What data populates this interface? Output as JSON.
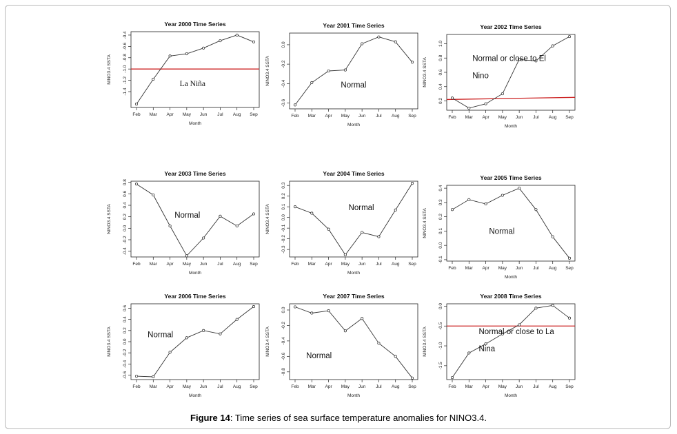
{
  "figure": {
    "caption_label": "Figure 14",
    "caption_text": ": Time series of sea surface temperature anomalies for NINO3.4."
  },
  "colors": {
    "line": "#333333",
    "reference_line": "#cc2222",
    "axis": "#222222"
  },
  "chart_data": [
    {
      "type": "line",
      "title": "Year 2000 Time Series",
      "xlabel": "Month",
      "ylabel": "NINO3.4 SSTA",
      "categories": [
        "Feb",
        "Mar",
        "Apr",
        "May",
        "Jun",
        "Jul",
        "Aug",
        "Sep"
      ],
      "values": [
        -1.62,
        -1.18,
        -0.77,
        -0.73,
        -0.63,
        -0.5,
        -0.4,
        -0.52
      ],
      "ylim": [
        -1.68,
        -0.34
      ],
      "yticks": [
        -1.4,
        -1.2,
        -1.0,
        -0.8,
        -0.6,
        -0.4
      ],
      "yticklabels": [
        "-1.4",
        "-1.2",
        "-1.0",
        "-0.8",
        "-0.6",
        "-0.4"
      ],
      "reference_line": -1.0,
      "annotation": "La Niña"
    },
    {
      "type": "line",
      "title": "Year 2001 Time Series",
      "xlabel": "Month",
      "ylabel": "NINO3.4 SSTA",
      "categories": [
        "Feb",
        "Mar",
        "Apr",
        "May",
        "Jun",
        "Jul",
        "Aug",
        "Sep"
      ],
      "values": [
        -0.62,
        -0.39,
        -0.27,
        -0.26,
        0.01,
        0.08,
        0.03,
        -0.18
      ],
      "ylim": [
        -0.66,
        0.12
      ],
      "yticks": [
        -0.6,
        -0.4,
        -0.2,
        0.0
      ],
      "yticklabels": [
        "-0.6",
        "-0.4",
        "-0.2",
        "0.0"
      ],
      "annotation": "Normal"
    },
    {
      "type": "line",
      "title": "Year 2002 Time Series",
      "xlabel": "Month",
      "ylabel": "NINO3.4 SSTA",
      "categories": [
        "Feb",
        "Mar",
        "Apr",
        "May",
        "Jun",
        "Jul",
        "Aug",
        "Sep"
      ],
      "values": [
        0.24,
        0.1,
        0.16,
        0.3,
        0.78,
        0.76,
        0.97,
        1.1
      ],
      "ylim": [
        0.07,
        1.13
      ],
      "yticks": [
        0.2,
        0.4,
        0.6,
        0.8,
        1.0
      ],
      "yticklabels": [
        "0.2",
        "0.4",
        "0.6",
        "0.8",
        "1.0"
      ],
      "reference_line_points": [
        0.22,
        0.25
      ],
      "annotation": [
        "Normal or close to El",
        "Nino"
      ]
    },
    {
      "type": "line",
      "title": "Year 2003 Time Series",
      "xlabel": "Month",
      "ylabel": "NINO3.4 SSTA",
      "categories": [
        "Feb",
        "Mar",
        "Apr",
        "May",
        "Jun",
        "Jul",
        "Aug",
        "Sep"
      ],
      "values": [
        0.77,
        0.58,
        0.04,
        -0.48,
        -0.17,
        0.21,
        0.04,
        0.25
      ],
      "ylim": [
        -0.5,
        0.82
      ],
      "yticks": [
        -0.4,
        -0.2,
        0.0,
        0.2,
        0.4,
        0.6,
        0.8
      ],
      "yticklabels": [
        "-0.4",
        "-0.2",
        "0.0",
        "0.2",
        "0.4",
        "0.6",
        "0.8"
      ],
      "annotation": "Normal"
    },
    {
      "type": "line",
      "title": "Year 2004 Time Series",
      "xlabel": "Month",
      "ylabel": "NINO3.4 SSTA",
      "categories": [
        "Feb",
        "Mar",
        "Apr",
        "May",
        "Jun",
        "Jul",
        "Aug",
        "Sep"
      ],
      "values": [
        0.1,
        0.04,
        -0.11,
        -0.35,
        -0.14,
        -0.18,
        0.07,
        0.32
      ],
      "ylim": [
        -0.37,
        0.34
      ],
      "yticks": [
        -0.3,
        -0.2,
        -0.1,
        0.0,
        0.1,
        0.2,
        0.3
      ],
      "yticklabels": [
        "-0.3",
        "-0.2",
        "-0.1",
        "0.0",
        "0.1",
        "0.2",
        "0.3"
      ],
      "annotation": "Normal"
    },
    {
      "type": "line",
      "title": "Year 2005 Time Series",
      "xlabel": "Month",
      "ylabel": "NINO3.4 SSTA",
      "categories": [
        "Feb",
        "Mar",
        "Apr",
        "May",
        "Jun",
        "Jul",
        "Aug",
        "Sep"
      ],
      "values": [
        0.25,
        0.32,
        0.29,
        0.35,
        0.4,
        0.25,
        0.06,
        -0.09
      ],
      "ylim": [
        -0.11,
        0.42
      ],
      "yticks": [
        -0.1,
        0.0,
        0.1,
        0.2,
        0.3,
        0.4
      ],
      "yticklabels": [
        "-0.1",
        "0.0",
        "0.1",
        "0.2",
        "0.3",
        "0.4"
      ],
      "annotation": "Normal"
    },
    {
      "type": "line",
      "title": "Year 2006 Time Series",
      "xlabel": "Month",
      "ylabel": "NINO3.4 SSTA",
      "categories": [
        "Feb",
        "Mar",
        "Apr",
        "May",
        "Jun",
        "Jul",
        "Aug",
        "Sep"
      ],
      "values": [
        -0.62,
        -0.63,
        -0.19,
        0.07,
        0.2,
        0.14,
        0.4,
        0.63
      ],
      "ylim": [
        -0.68,
        0.68
      ],
      "yticks": [
        -0.6,
        -0.4,
        -0.2,
        0.0,
        0.2,
        0.4,
        0.6
      ],
      "yticklabels": [
        "-0.6",
        "-0.4",
        "-0.2",
        "0.0",
        "0.2",
        "0.4",
        "0.6"
      ],
      "annotation": "Normal"
    },
    {
      "type": "line",
      "title": "Year 2007 Time Series",
      "xlabel": "Month",
      "ylabel": "NINO3.4 SSTA",
      "categories": [
        "Feb",
        "Mar",
        "Apr",
        "May",
        "Jun",
        "Jul",
        "Aug",
        "Sep"
      ],
      "values": [
        0.04,
        -0.04,
        -0.01,
        -0.27,
        -0.11,
        -0.43,
        -0.6,
        -0.88
      ],
      "ylim": [
        -0.9,
        0.08
      ],
      "yticks": [
        -0.8,
        -0.6,
        -0.4,
        -0.2,
        0.0
      ],
      "yticklabels": [
        "-0.8",
        "-0.6",
        "-0.4",
        "-0.2",
        "0.0"
      ],
      "annotation": "Normal"
    },
    {
      "type": "line",
      "title": "Year 2008 Time Series",
      "xlabel": "Month",
      "ylabel": "NINO3.4 SSTA",
      "categories": [
        "Feb",
        "Mar",
        "Apr",
        "May",
        "Jun",
        "Jul",
        "Aug",
        "Sep"
      ],
      "values": [
        -1.8,
        -1.18,
        -0.95,
        -0.7,
        -0.47,
        -0.05,
        0.02,
        -0.3
      ],
      "ylim": [
        -1.85,
        0.06
      ],
      "yticks": [
        -1.5,
        -1.0,
        -0.5,
        0.0
      ],
      "yticklabels": [
        "-1.5",
        "-1.0",
        "-0.5",
        "0.0"
      ],
      "reference_line": -0.5,
      "annotation": [
        "Normal or close to La",
        "Nina"
      ]
    }
  ]
}
